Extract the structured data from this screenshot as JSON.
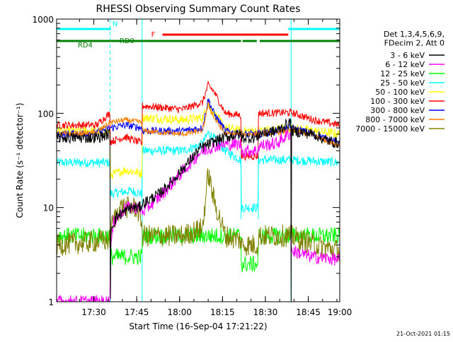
{
  "chart_data": {
    "type": "line",
    "title": "RHESSI Observing Summary Count Rates",
    "xlabel": "Start Time (16-Sep-04 17:21:22)",
    "ylabel": "Count Rate (s⁻¹ detector⁻¹)",
    "yscale": "log",
    "ylim": [
      1,
      1000
    ],
    "xlim_minutes": [
      -4,
      95
    ],
    "x_ticks": [
      {
        "label": "17:30",
        "t": 9
      },
      {
        "label": "17:45",
        "t": 24
      },
      {
        "label": "18:00",
        "t": 39
      },
      {
        "label": "18:15",
        "t": 54
      },
      {
        "label": "18:30",
        "t": 69
      },
      {
        "label": "18:45",
        "t": 84
      },
      {
        "label": "19:00",
        "t": 99
      }
    ],
    "y_ticks": [
      {
        "label": "1",
        "v": 1
      },
      {
        "label": "10",
        "v": 10
      },
      {
        "label": "100",
        "v": 100
      },
      {
        "label": "1000",
        "v": 1000
      }
    ],
    "legend": {
      "placement": "top-right",
      "header_lines": [
        "Det 1,3,4,5,6,9,",
        "FDecim 2, Att 0"
      ]
    },
    "footer_date": "21-Oct-2021 01:15",
    "flags": [
      {
        "label": "N",
        "color": "#00ffff",
        "segments": [
          [
            -4,
            15
          ],
          [
            77,
            95
          ]
        ]
      },
      {
        "label": "F",
        "color": "#ff0000",
        "segments": [
          [
            33,
            77
          ]
        ]
      },
      {
        "label": "RD4",
        "color": "#008000",
        "segments": [
          [
            -4,
            15
          ]
        ]
      },
      {
        "label": "RD0",
        "color": "#008000",
        "segments": [
          [
            15,
            26.5
          ],
          [
            26.5,
            60.5
          ],
          [
            61,
            66
          ],
          [
            67,
            95
          ]
        ]
      }
    ],
    "night_lines": [
      {
        "t": -4,
        "style": "solid"
      },
      {
        "t": 14.7,
        "style": "dashed"
      },
      {
        "t": 25.9,
        "style": "solid"
      },
      {
        "t": 78,
        "style": "solid"
      },
      {
        "t": 95,
        "style": "dashed"
      }
    ],
    "gap_lines": [
      {
        "t": 60.5
      },
      {
        "t": 66.5
      }
    ],
    "series": [
      {
        "name": "3 - 6 keV",
        "color": "#000000",
        "noise": 0.06,
        "points": [
          [
            -4,
            55
          ],
          [
            10,
            55
          ],
          [
            14,
            60
          ],
          [
            14.6,
            60
          ],
          [
            14.8,
            1
          ],
          [
            15,
            6
          ],
          [
            17,
            8
          ],
          [
            22,
            10
          ],
          [
            25,
            10
          ],
          [
            26,
            11
          ],
          [
            32,
            14
          ],
          [
            37,
            20
          ],
          [
            42,
            30
          ],
          [
            46,
            42
          ],
          [
            51,
            50
          ],
          [
            55,
            56
          ],
          [
            60.4,
            60
          ],
          [
            60.6,
            55
          ],
          [
            66.4,
            55
          ],
          [
            66.6,
            60
          ],
          [
            73,
            65
          ],
          [
            77,
            78
          ],
          [
            77.9,
            80
          ],
          [
            78,
            1
          ],
          [
            78.2,
            65
          ],
          [
            86,
            60
          ],
          [
            90,
            52
          ],
          [
            95,
            48
          ]
        ]
      },
      {
        "name": "6 - 12 keV",
        "color": "#ff00ff",
        "noise": 0.07,
        "points": [
          [
            -4,
            1
          ],
          [
            14.6,
            1
          ],
          [
            14.8,
            3.5
          ],
          [
            16,
            7
          ],
          [
            20,
            10
          ],
          [
            25,
            10
          ],
          [
            26,
            9
          ],
          [
            32,
            13
          ],
          [
            37,
            19
          ],
          [
            42,
            28
          ],
          [
            46,
            38
          ],
          [
            51,
            45
          ],
          [
            55,
            47
          ],
          [
            60.4,
            47
          ],
          [
            60.6,
            40
          ],
          [
            66.4,
            40
          ],
          [
            66.6,
            45
          ],
          [
            73,
            48
          ],
          [
            77,
            60
          ],
          [
            77.9,
            60
          ],
          [
            78,
            3.5
          ],
          [
            85,
            3
          ],
          [
            95,
            2.8
          ]
        ]
      },
      {
        "name": "12 - 25 keV",
        "color": "#00ff00",
        "noise": 0.09,
        "points": [
          [
            -4,
            5
          ],
          [
            14.6,
            5
          ],
          [
            14.8,
            3
          ],
          [
            25.8,
            3
          ],
          [
            26,
            5
          ],
          [
            55,
            5
          ],
          [
            60.4,
            5
          ],
          [
            60.6,
            2.5
          ],
          [
            66.4,
            2.5
          ],
          [
            66.6,
            5
          ],
          [
            95,
            5
          ]
        ]
      },
      {
        "name": "25 - 50 keV",
        "color": "#00ffff",
        "noise": 0.05,
        "points": [
          [
            -4,
            30
          ],
          [
            14.6,
            30
          ],
          [
            14.8,
            14
          ],
          [
            22,
            15
          ],
          [
            25.8,
            14
          ],
          [
            26,
            40
          ],
          [
            40,
            40
          ],
          [
            47,
            47
          ],
          [
            49,
            62
          ],
          [
            51,
            55
          ],
          [
            55,
            40
          ],
          [
            60.4,
            32
          ],
          [
            60.6,
            10
          ],
          [
            66.4,
            10
          ],
          [
            66.6,
            32
          ],
          [
            78,
            32
          ],
          [
            95,
            30
          ]
        ]
      },
      {
        "name": "50 - 100 keV",
        "color": "#ffff00",
        "noise": 0.05,
        "points": [
          [
            -4,
            65
          ],
          [
            10,
            65
          ],
          [
            14.6,
            65
          ],
          [
            14.8,
            22
          ],
          [
            20,
            25
          ],
          [
            25.8,
            23
          ],
          [
            26,
            90
          ],
          [
            40,
            85
          ],
          [
            47,
            90
          ],
          [
            49,
            125
          ],
          [
            51,
            100
          ],
          [
            55,
            70
          ],
          [
            60.4,
            65
          ],
          [
            60.6,
            65
          ],
          [
            66.4,
            65
          ],
          [
            66.6,
            65
          ],
          [
            78,
            70
          ],
          [
            95,
            60
          ]
        ]
      },
      {
        "name": "100 - 300 keV",
        "color": "#ff0000",
        "noise": 0.04,
        "points": [
          [
            -4,
            75
          ],
          [
            10,
            75
          ],
          [
            14.6,
            100
          ],
          [
            14.8,
            50
          ],
          [
            20,
            56
          ],
          [
            25.8,
            48
          ],
          [
            26,
            120
          ],
          [
            40,
            110
          ],
          [
            47,
            130
          ],
          [
            49,
            200
          ],
          [
            51,
            170
          ],
          [
            55,
            100
          ],
          [
            60.4,
            95
          ],
          [
            60.6,
            35
          ],
          [
            66.4,
            35
          ],
          [
            66.6,
            100
          ],
          [
            78,
            102
          ],
          [
            86,
            85
          ],
          [
            95,
            75
          ]
        ]
      },
      {
        "name": "300 - 800 keV",
        "color": "#0000ff",
        "noise": 0.04,
        "points": [
          [
            -4,
            60
          ],
          [
            10,
            62
          ],
          [
            14.6,
            70
          ],
          [
            14.8,
            70
          ],
          [
            20,
            75
          ],
          [
            25.8,
            70
          ],
          [
            26,
            65
          ],
          [
            40,
            65
          ],
          [
            47,
            70
          ],
          [
            49,
            140
          ],
          [
            51,
            100
          ],
          [
            55,
            65
          ],
          [
            60.4,
            60
          ],
          [
            60.6,
            60
          ],
          [
            66.4,
            60
          ],
          [
            66.6,
            60
          ],
          [
            78,
            70
          ],
          [
            86,
            60
          ],
          [
            95,
            48
          ]
        ]
      },
      {
        "name": "800 - 7000 keV",
        "color": "#ff8000",
        "noise": 0.03,
        "points": [
          [
            -4,
            60
          ],
          [
            10,
            62
          ],
          [
            14.6,
            80
          ],
          [
            14.8,
            80
          ],
          [
            20,
            85
          ],
          [
            25.8,
            80
          ],
          [
            26,
            65
          ],
          [
            40,
            60
          ],
          [
            47,
            65
          ],
          [
            49,
            125
          ],
          [
            51,
            90
          ],
          [
            55,
            60
          ],
          [
            60.4,
            60
          ],
          [
            60.6,
            60
          ],
          [
            66.4,
            60
          ],
          [
            66.6,
            60
          ],
          [
            78,
            65
          ],
          [
            86,
            58
          ],
          [
            95,
            45
          ]
        ]
      },
      {
        "name": "7000 - 15000 keV",
        "color": "#808000",
        "noise": 0.12,
        "points": [
          [
            -4,
            4
          ],
          [
            14.6,
            4.5
          ],
          [
            14.8,
            6
          ],
          [
            18,
            10
          ],
          [
            24,
            10
          ],
          [
            25.8,
            7
          ],
          [
            26,
            5
          ],
          [
            40,
            5
          ],
          [
            47,
            6
          ],
          [
            49,
            23
          ],
          [
            51,
            12
          ],
          [
            55,
            5
          ],
          [
            60.4,
            4.5
          ],
          [
            60.6,
            4
          ],
          [
            66.4,
            4
          ],
          [
            66.6,
            5
          ],
          [
            78,
            5
          ],
          [
            86,
            4
          ],
          [
            95,
            3.5
          ]
        ]
      }
    ]
  }
}
